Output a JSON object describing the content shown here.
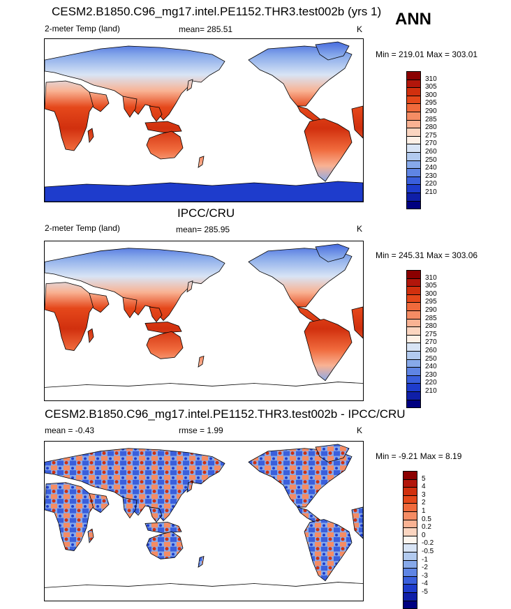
{
  "season": "ANN",
  "panels": [
    {
      "title": "CESM2.B1850.C96_mg17.intel.PE1152.THR3.test002b (yrs 1)",
      "left_label": "2-meter Temp (land)",
      "center_label": "mean= 285.51",
      "units": "K",
      "minmax": "Min = 219.01 Max = 303.01",
      "colorbar_labels": [
        "310",
        "305",
        "300",
        "295",
        "290",
        "285",
        "280",
        "275",
        "270",
        "260",
        "250",
        "240",
        "230",
        "220",
        "210"
      ],
      "colorbar_colors": [
        "#8b0000",
        "#b2160b",
        "#d1300e",
        "#e5481b",
        "#f06a3c",
        "#f58c64",
        "#f9b293",
        "#fbd5c0",
        "#fdf0e6",
        "#d8e4f5",
        "#b2caef",
        "#87a9ea",
        "#5f85e4",
        "#3a5fdc",
        "#1e3ccc",
        "#0f1fa8",
        "#000080"
      ],
      "has_antarctica": true,
      "palette": "temp"
    },
    {
      "title": "IPCC/CRU",
      "left_label": "2-meter Temp (land)",
      "center_label": "mean= 285.95",
      "units": "K",
      "minmax": "Min = 245.31 Max = 303.06",
      "colorbar_labels": [
        "310",
        "305",
        "300",
        "295",
        "290",
        "285",
        "280",
        "275",
        "270",
        "260",
        "250",
        "240",
        "230",
        "220",
        "210"
      ],
      "colorbar_colors": [
        "#8b0000",
        "#b2160b",
        "#d1300e",
        "#e5481b",
        "#f06a3c",
        "#f58c64",
        "#f9b293",
        "#fbd5c0",
        "#fdf0e6",
        "#d8e4f5",
        "#b2caef",
        "#87a9ea",
        "#5f85e4",
        "#3a5fdc",
        "#1e3ccc",
        "#0f1fa8",
        "#000080"
      ],
      "has_antarctica": false,
      "palette": "temp"
    },
    {
      "title": "CESM2.B1850.C96_mg17.intel.PE1152.THR3.test002b - IPCC/CRU",
      "left_label": "mean =  -0.43",
      "center_label": "rmse =   1.99",
      "units": "K",
      "minmax": "Min =  -9.21 Max =   8.19",
      "colorbar_labels": [
        "5",
        "4",
        "3",
        "2",
        "1",
        "0.5",
        "0.2",
        "0",
        "-0.2",
        "-0.5",
        "-1",
        "-2",
        "-3",
        "-4",
        "-5"
      ],
      "colorbar_colors": [
        "#8b0000",
        "#b2160b",
        "#d1300e",
        "#e5481b",
        "#f06a3c",
        "#f58c64",
        "#f9b293",
        "#fbd5c0",
        "#fdf6ef",
        "#d8e4f5",
        "#b2caef",
        "#87a9ea",
        "#5f85e4",
        "#3a5fdc",
        "#1e3ccc",
        "#0f1fa8",
        "#000080"
      ],
      "has_antarctica": false,
      "palette": "diff"
    }
  ]
}
